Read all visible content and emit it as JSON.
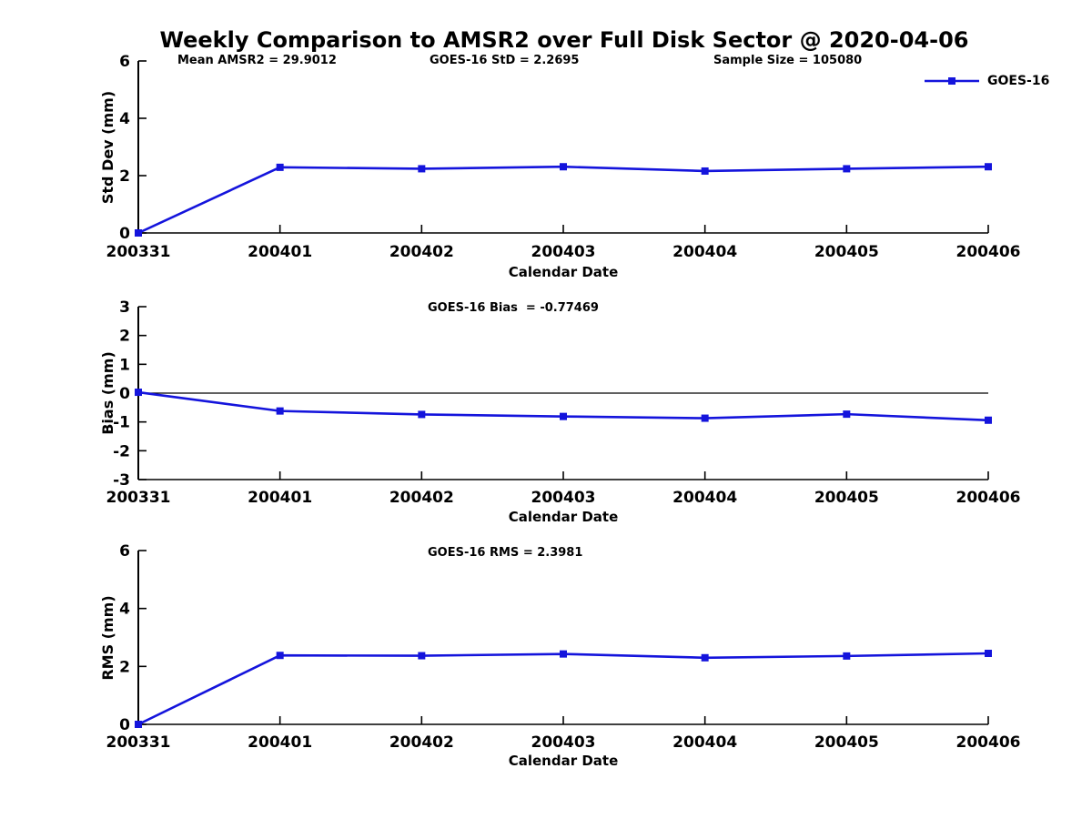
{
  "title": "Weekly Comparison to AMSR2 over Full Disk Sector @ 2020-04-06",
  "colors": {
    "line": "#1414DC",
    "axis": "#000000",
    "zero_line": "#000000",
    "text": "#000000"
  },
  "legend": {
    "label": "GOES-16"
  },
  "chart_data": [
    {
      "type": "line",
      "name": "std-dev",
      "annotations": [
        "Mean AMSR2 = 29.9012",
        "GOES-16 StD = 2.2695",
        "Sample Size = 105080"
      ],
      "ylabel": "Std Dev (mm)",
      "xlabel": "Calendar Date",
      "ylim": [
        0,
        6
      ],
      "yticks": [
        0,
        2,
        4,
        6
      ],
      "zero_line": false,
      "grid": false,
      "legend_position": "upper-right-outside",
      "categories": [
        "200331",
        "200401",
        "200402",
        "200403",
        "200404",
        "200405",
        "200406"
      ],
      "series": [
        {
          "name": "GOES-16",
          "values": [
            0.0,
            2.29,
            2.24,
            2.31,
            2.16,
            2.24,
            2.31
          ]
        }
      ]
    },
    {
      "type": "line",
      "name": "bias",
      "annotations": [
        "GOES-16 Bias  = -0.77469"
      ],
      "ylabel": "Bias (mm)",
      "xlabel": "Calendar Date",
      "ylim": [
        -3,
        3
      ],
      "yticks": [
        -3,
        -2,
        -1,
        0,
        1,
        2,
        3
      ],
      "zero_line": true,
      "grid": false,
      "categories": [
        "200331",
        "200401",
        "200402",
        "200403",
        "200404",
        "200405",
        "200406"
      ],
      "series": [
        {
          "name": "GOES-16",
          "values": [
            0.03,
            -0.62,
            -0.74,
            -0.81,
            -0.87,
            -0.73,
            -0.94
          ]
        }
      ]
    },
    {
      "type": "line",
      "name": "rms",
      "annotations": [
        "GOES-16 RMS = 2.3981"
      ],
      "ylabel": "RMS (mm)",
      "xlabel": "Calendar Date",
      "ylim": [
        0,
        6
      ],
      "yticks": [
        0,
        2,
        4,
        6
      ],
      "zero_line": false,
      "grid": false,
      "categories": [
        "200331",
        "200401",
        "200402",
        "200403",
        "200404",
        "200405",
        "200406"
      ],
      "series": [
        {
          "name": "GOES-16",
          "values": [
            0.0,
            2.38,
            2.37,
            2.43,
            2.3,
            2.36,
            2.45
          ]
        }
      ]
    }
  ]
}
